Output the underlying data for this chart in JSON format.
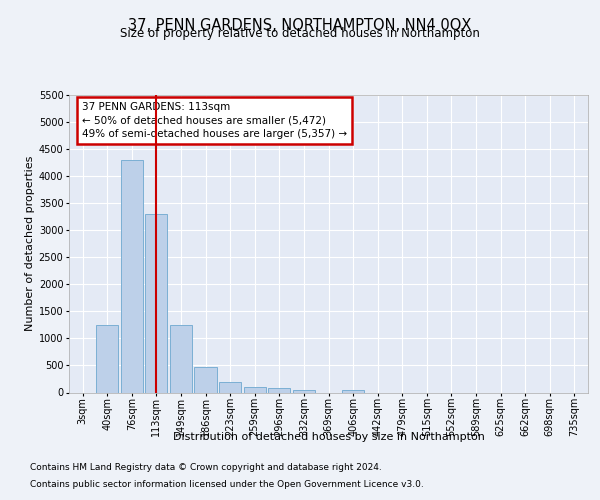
{
  "title": "37, PENN GARDENS, NORTHAMPTON, NN4 0QX",
  "subtitle": "Size of property relative to detached houses in Northampton",
  "xlabel": "Distribution of detached houses by size in Northampton",
  "ylabel": "Number of detached properties",
  "footer_line1": "Contains HM Land Registry data © Crown copyright and database right 2024.",
  "footer_line2": "Contains public sector information licensed under the Open Government Licence v3.0.",
  "bar_labels": [
    "3sqm",
    "40sqm",
    "76sqm",
    "113sqm",
    "149sqm",
    "186sqm",
    "223sqm",
    "259sqm",
    "296sqm",
    "332sqm",
    "369sqm",
    "406sqm",
    "442sqm",
    "479sqm",
    "515sqm",
    "552sqm",
    "589sqm",
    "625sqm",
    "662sqm",
    "698sqm",
    "735sqm"
  ],
  "bar_values": [
    0,
    1250,
    4300,
    3300,
    1250,
    480,
    200,
    100,
    75,
    55,
    0,
    55,
    0,
    0,
    0,
    0,
    0,
    0,
    0,
    0,
    0
  ],
  "bar_color": "#bdd0e9",
  "bar_edge_color": "#7bafd4",
  "highlight_bar_index": 3,
  "highlight_line_color": "#cc0000",
  "annotation_text": "37 PENN GARDENS: 113sqm\n← 50% of detached houses are smaller (5,472)\n49% of semi-detached houses are larger (5,357) →",
  "annotation_box_color": "#cc0000",
  "ylim": [
    0,
    5500
  ],
  "yticks": [
    0,
    500,
    1000,
    1500,
    2000,
    2500,
    3000,
    3500,
    4000,
    4500,
    5000,
    5500
  ],
  "bg_color": "#eef2f8",
  "plot_bg_color": "#e4eaf5",
  "grid_color": "#ffffff",
  "title_fontsize": 10.5,
  "subtitle_fontsize": 8.5,
  "label_fontsize": 8,
  "tick_fontsize": 7,
  "footer_fontsize": 6.5
}
